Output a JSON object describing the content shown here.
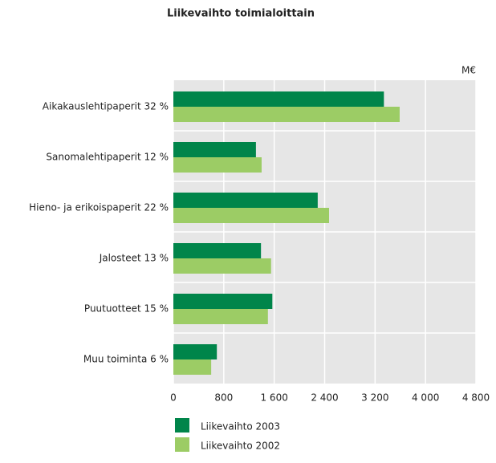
{
  "chart_data": {
    "type": "bar",
    "orientation": "horizontal",
    "title": "Liikevaihto toimialoittain",
    "unit": "M€",
    "categories": [
      "Aikakauslehtipaperit 32 %",
      "Sanomalehtipaperit 12 %",
      "Hieno- ja erikoispaperit 22 %",
      "Jalosteet 13 %",
      "Puutuotteet 15 %",
      "Muu toiminta 6 %"
    ],
    "series": [
      {
        "name": "Liikevaihto 2003",
        "color": "#00854a",
        "values": [
          3340,
          1310,
          2290,
          1390,
          1570,
          690
        ]
      },
      {
        "name": "Liikevaihto 2002",
        "color": "#9ccc65",
        "values": [
          3590,
          1400,
          2470,
          1550,
          1500,
          600
        ]
      }
    ],
    "xlim": [
      0,
      4800
    ],
    "xticks": [
      0,
      800,
      {
        "value": 1600,
        "label": "1 600"
      },
      {
        "value": 2400,
        "label": "2 400"
      },
      {
        "value": 3200,
        "label": "3 200"
      },
      {
        "value": 4000,
        "label": "4 000"
      },
      {
        "value": 4800,
        "label": "4 800"
      }
    ],
    "grid": true
  }
}
